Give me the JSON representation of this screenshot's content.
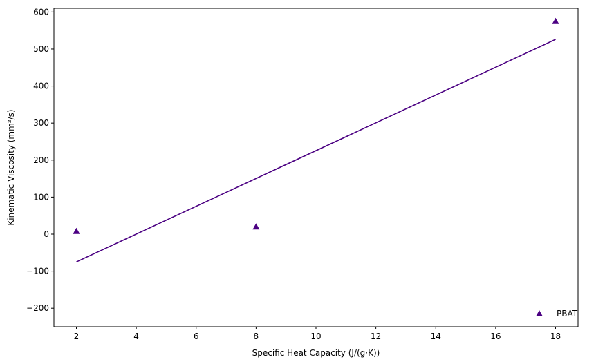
{
  "chart_data": {
    "type": "scatter",
    "xlabel": "Specific Heat Capacity (J/(g·K))",
    "ylabel": "Kinematic Viscosity (mm²/s)",
    "xlim": [
      1.25,
      18.75
    ],
    "ylim": [
      -250,
      610
    ],
    "xticks": [
      2,
      4,
      6,
      8,
      10,
      12,
      14,
      16,
      18
    ],
    "yticks": [
      -200,
      -100,
      0,
      100,
      200,
      300,
      400,
      500,
      600
    ],
    "xtick_labels": [
      "2",
      "4",
      "6",
      "8",
      "10",
      "12",
      "14",
      "16",
      "18"
    ],
    "ytick_labels": [
      "−200",
      "−100",
      "0",
      "100",
      "200",
      "300",
      "400",
      "500",
      "600"
    ],
    "grid": false,
    "legend": {
      "position": "lower-right"
    },
    "series": [
      {
        "name": "PBAT",
        "marker": "triangle",
        "color": "#4b0082",
        "x": [
          2,
          8,
          18
        ],
        "y": [
          8,
          20,
          575
        ]
      }
    ],
    "trendline": {
      "color": "#4b0082",
      "x": [
        2,
        18
      ],
      "y": [
        -75,
        526
      ]
    }
  }
}
